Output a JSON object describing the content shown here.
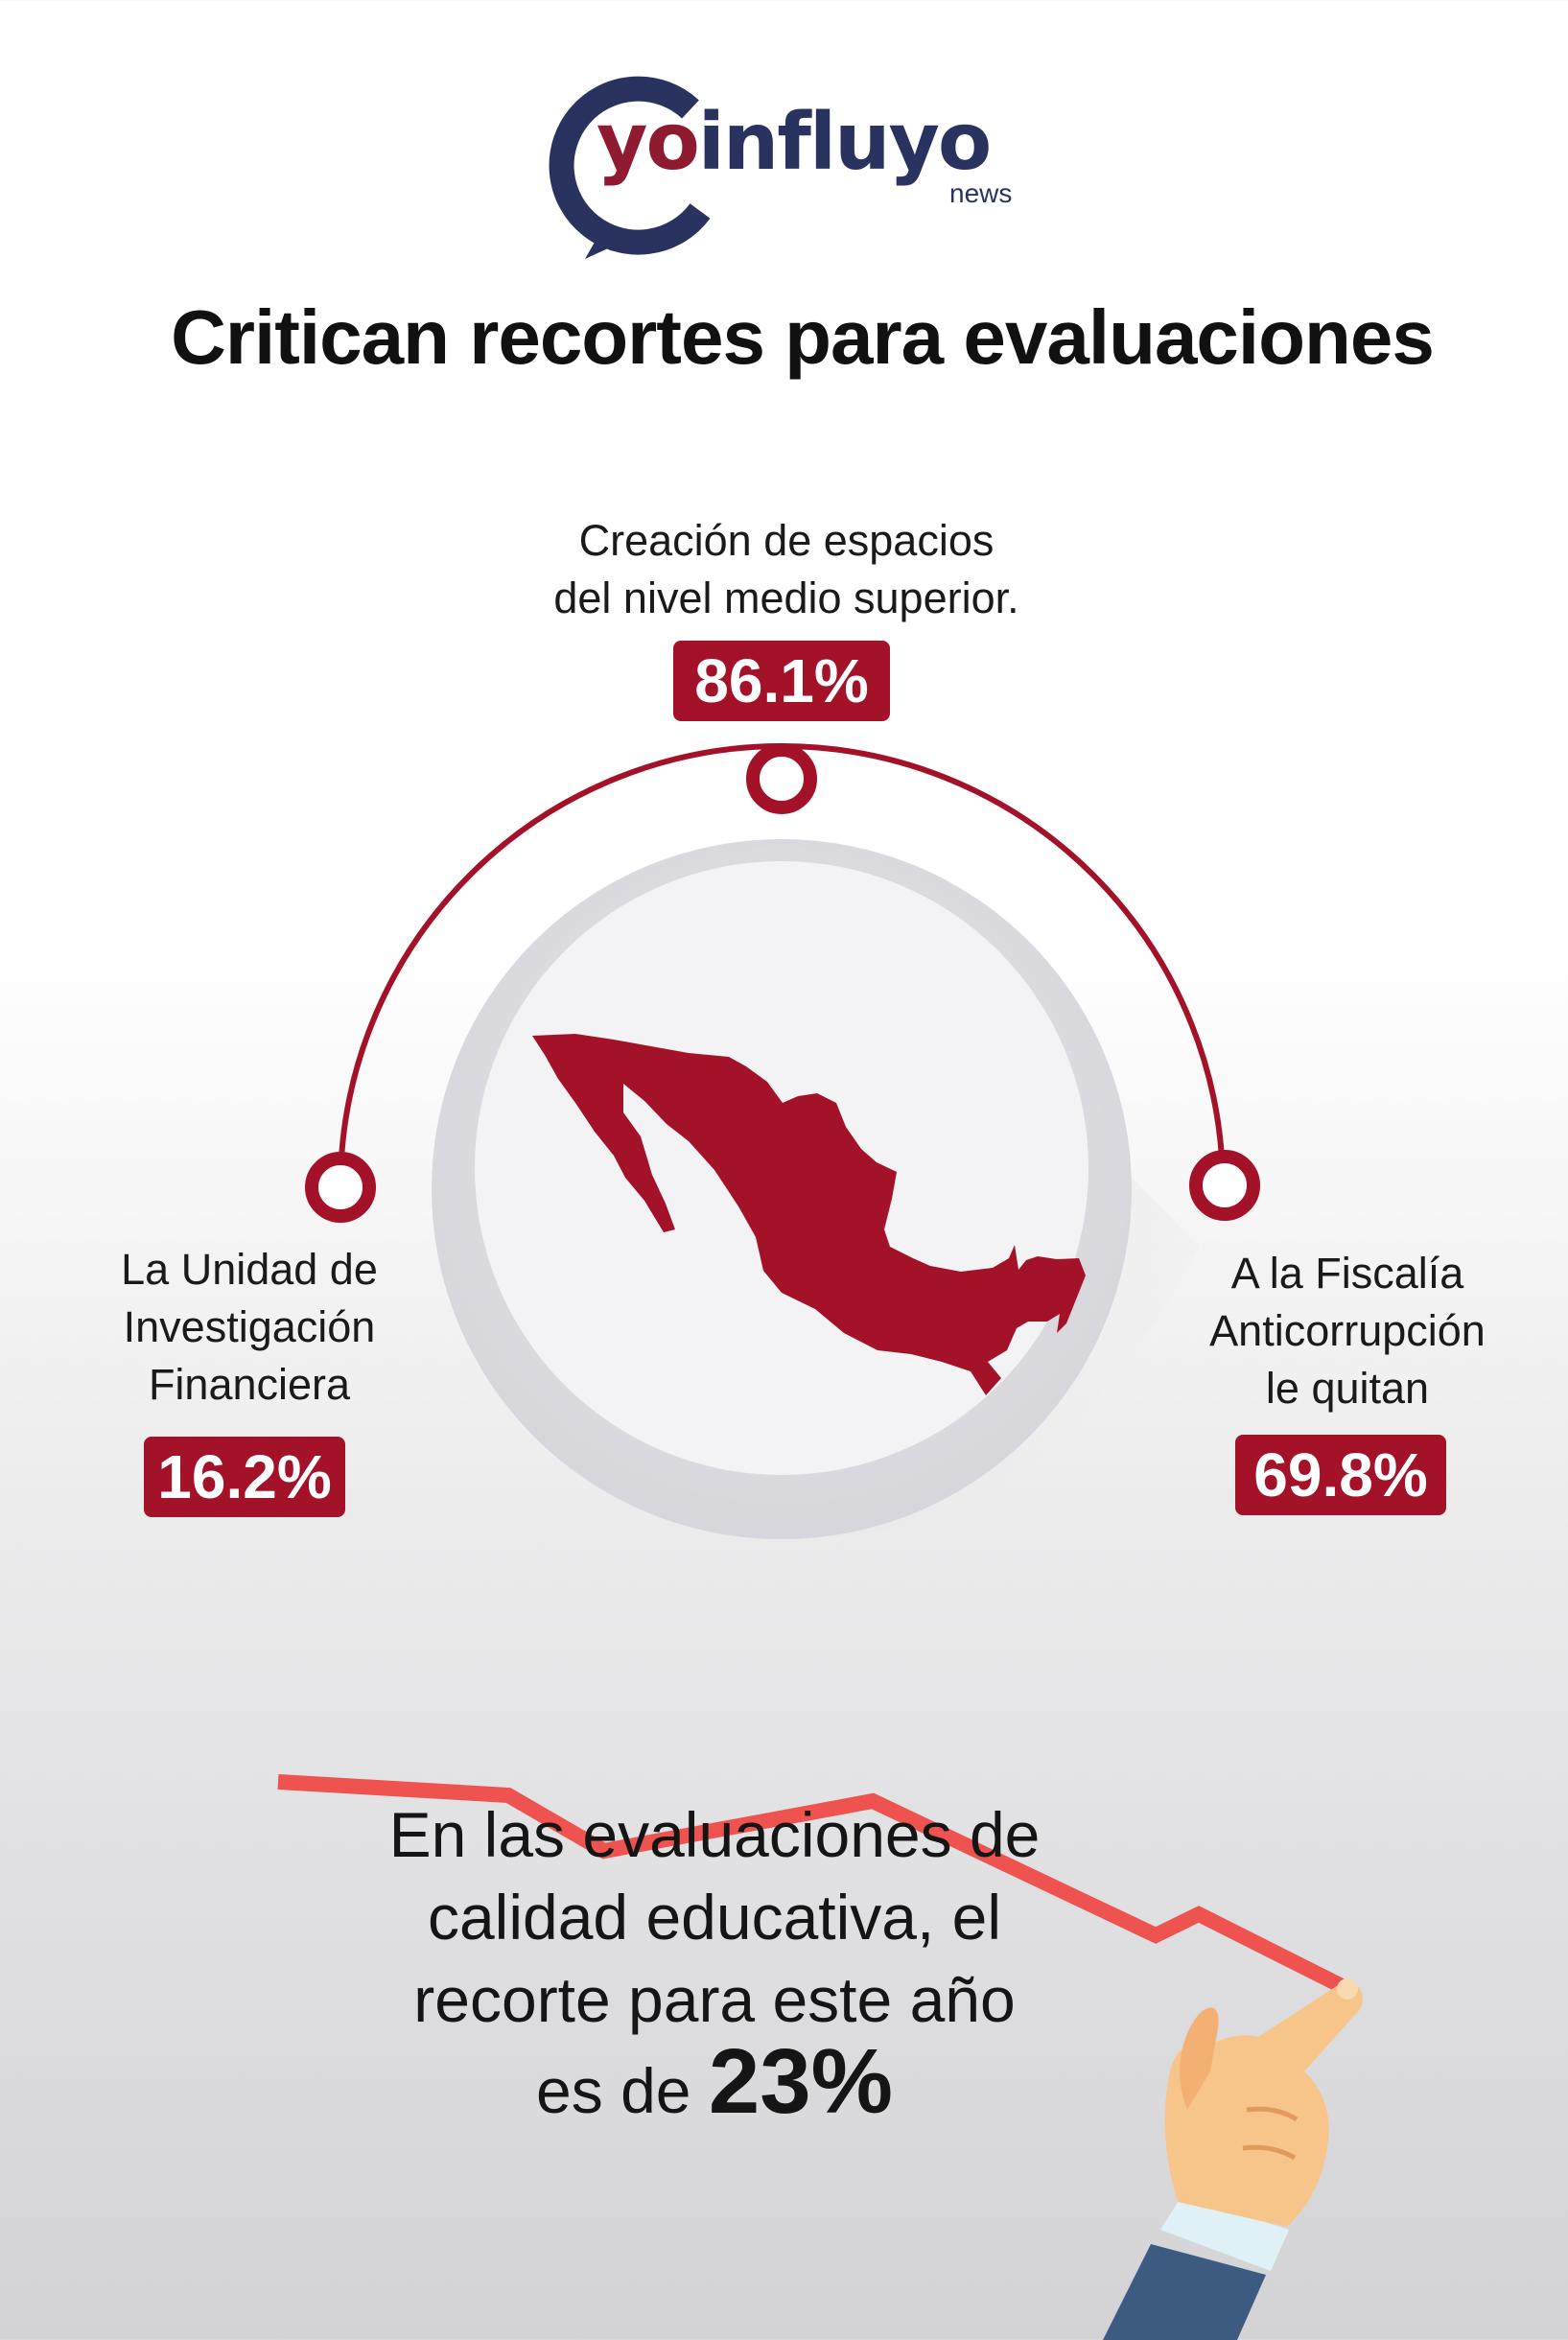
{
  "logo": {
    "text_yo": "yo",
    "text_rest": "influyo",
    "subtext": "news"
  },
  "title": "Critican recortes para evaluaciones",
  "items": [
    {
      "label_lines": [
        "Creación de espacios",
        "del nivel medio superior."
      ],
      "value": "86.1%"
    },
    {
      "label_lines": [
        "La Unidad de",
        "Investigación",
        "Financiera"
      ],
      "value": "16.2%"
    },
    {
      "label_lines": [
        "A la Fiscalía",
        "Anticorrupción",
        "le quitan"
      ],
      "value": "69.8%"
    }
  ],
  "bottom": {
    "lines": [
      "En las evaluaciones de",
      "calidad educativa, el",
      "recorte para este año"
    ],
    "last_prefix": "es de ",
    "percent": "23%"
  },
  "colors": {
    "accent": "#a31228",
    "navy": "#2a3260",
    "trend_line": "#ef5350"
  }
}
